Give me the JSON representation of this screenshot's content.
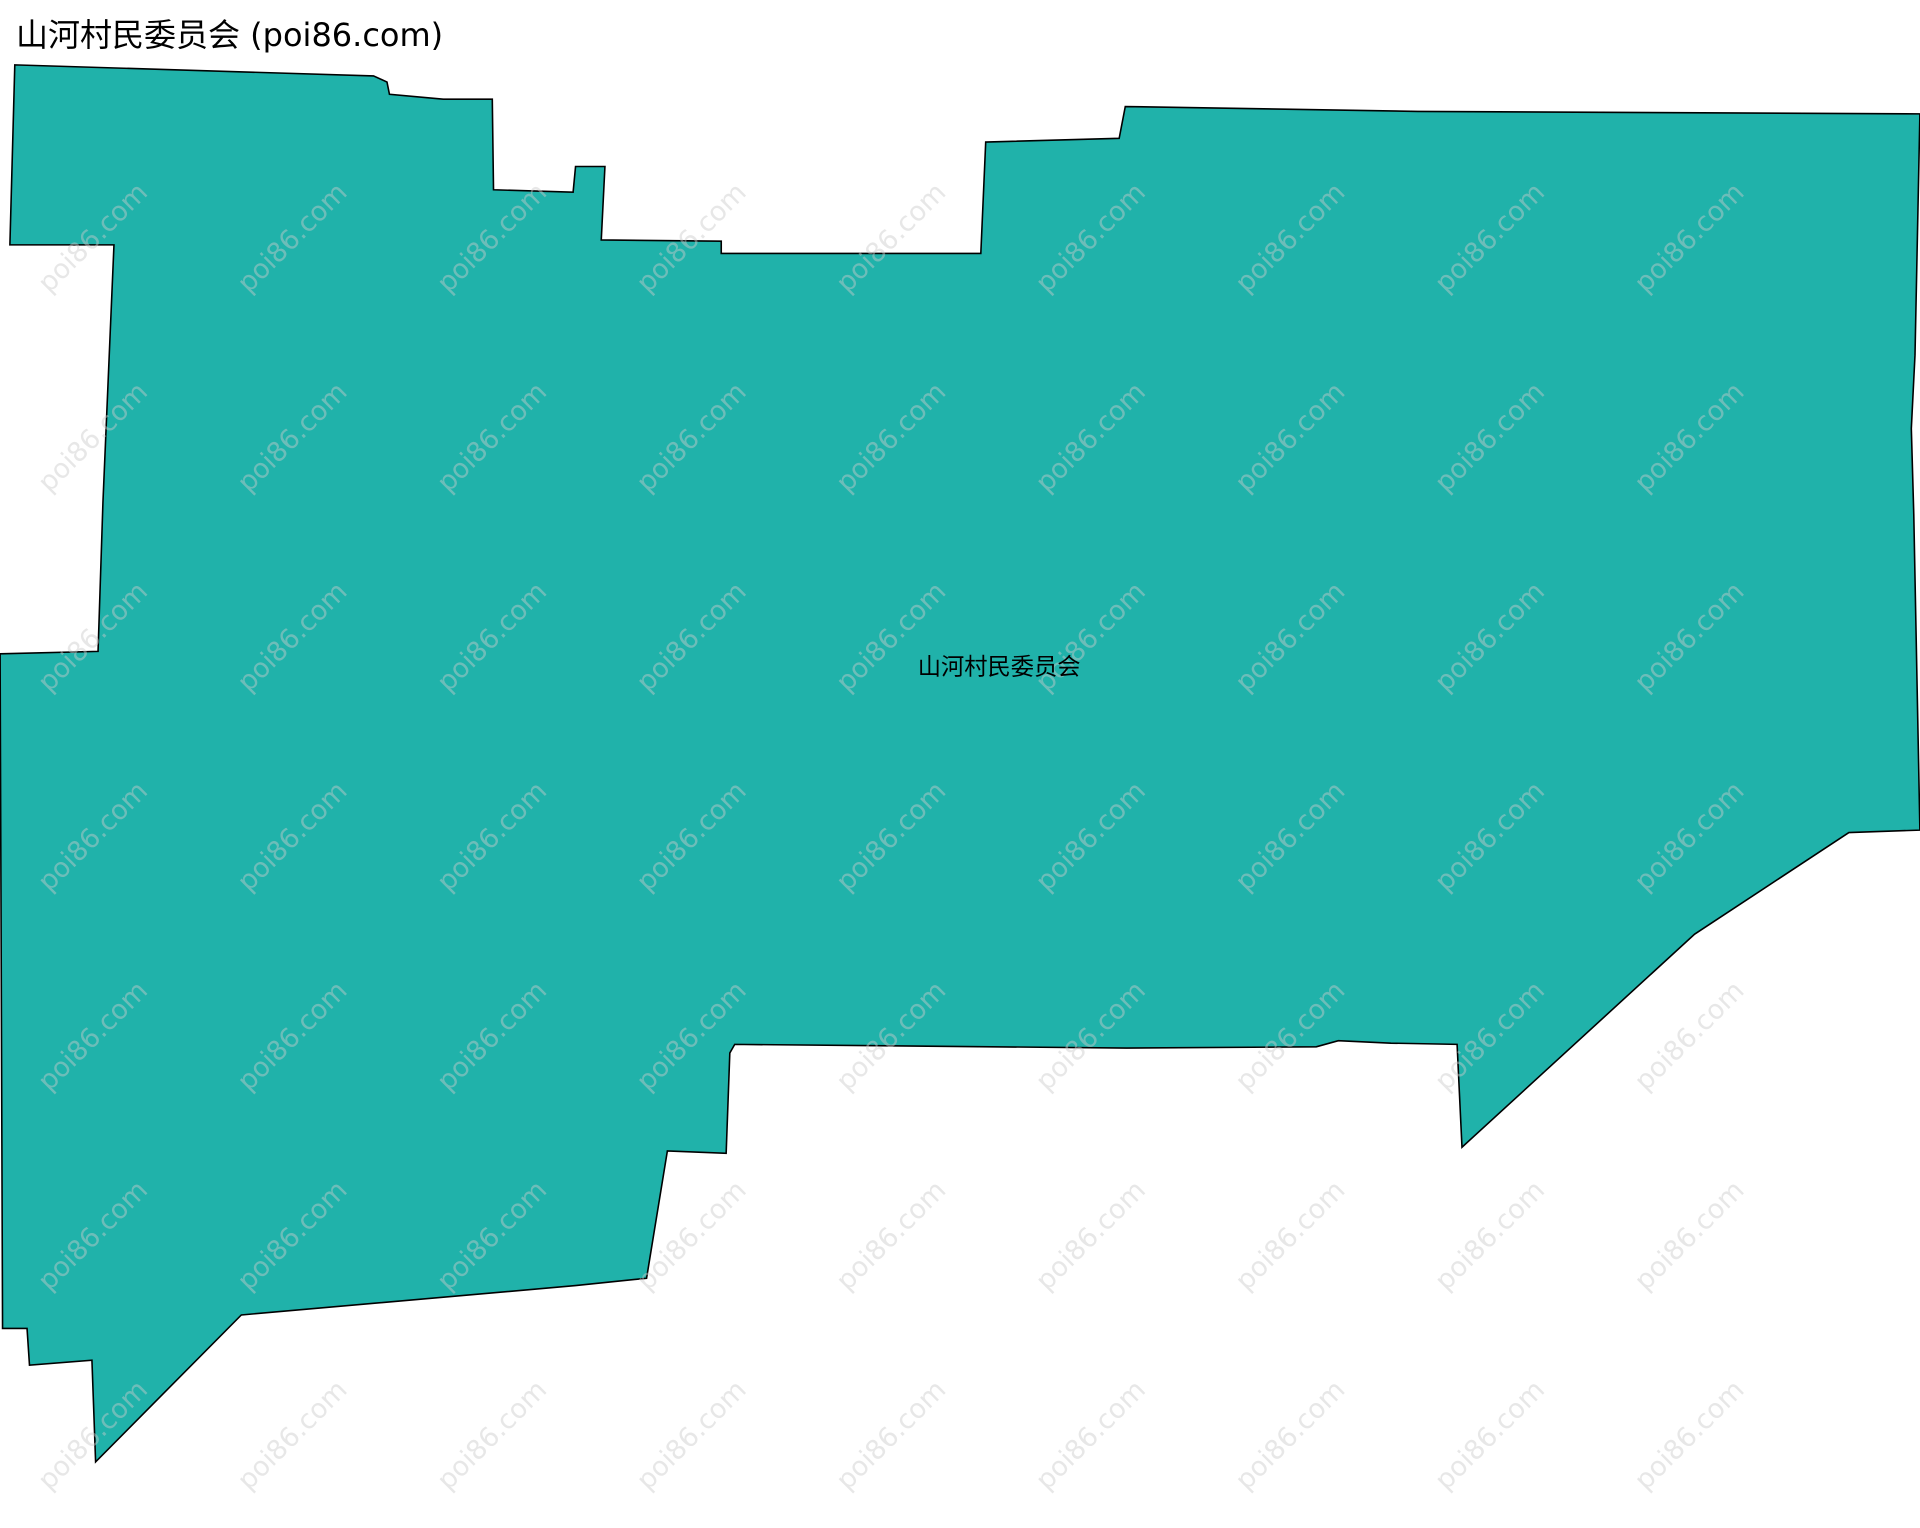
{
  "title": "山河村民委员会 (poi86.com)",
  "region": {
    "label": "山河村民委员会",
    "fill_color": "#20b2aa",
    "stroke_color": "#000000"
  },
  "watermark": "poi86.com"
}
